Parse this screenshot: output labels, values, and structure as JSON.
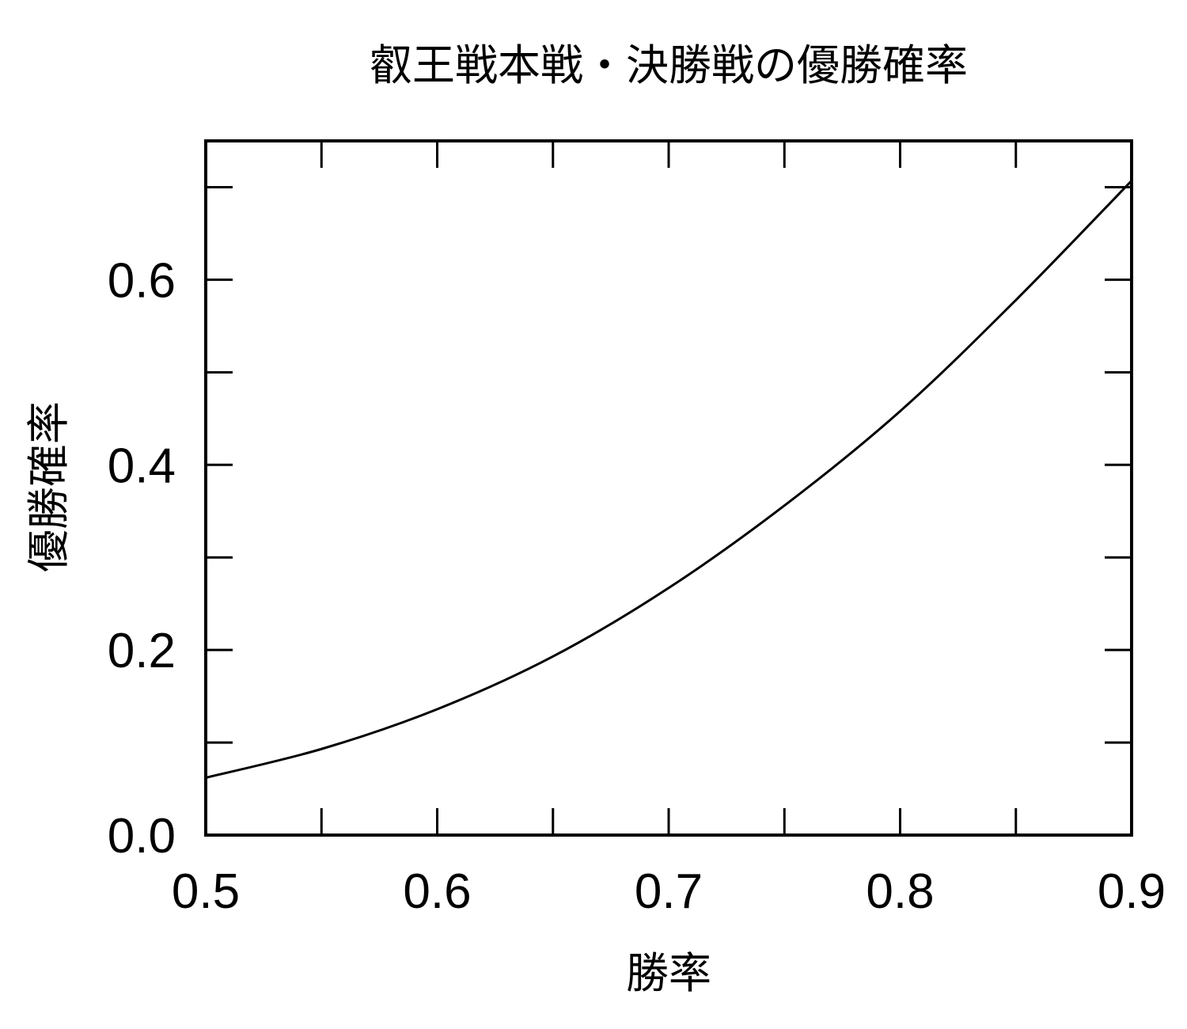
{
  "chart_data": {
    "type": "line",
    "title": "叡王戦本戦・決勝戦の優勝確率",
    "xlabel": "勝率",
    "ylabel": "優勝確率",
    "xlim": [
      0.5,
      0.9
    ],
    "ylim": [
      0.0,
      0.75
    ],
    "x_ticks": [
      0.5,
      0.55,
      0.6,
      0.65,
      0.7,
      0.75,
      0.8,
      0.85,
      0.9
    ],
    "x_tick_labels": [
      "0.5",
      "",
      "0.6",
      "",
      "0.7",
      "",
      "0.8",
      "",
      "0.9"
    ],
    "y_ticks": [
      0.0,
      0.1,
      0.2,
      0.3,
      0.4,
      0.5,
      0.6,
      0.7
    ],
    "y_tick_labels": [
      "0.0",
      "",
      "0.2",
      "",
      "0.4",
      "",
      "0.6",
      ""
    ],
    "grid": false,
    "line_color": "#000000",
    "series": [
      {
        "x": [
          0.5,
          0.55,
          0.6,
          0.65,
          0.7,
          0.75,
          0.8,
          0.85,
          0.9
        ],
        "y": [
          0.062,
          0.093,
          0.136,
          0.193,
          0.267,
          0.356,
          0.458,
          0.578,
          0.707
        ]
      }
    ]
  }
}
